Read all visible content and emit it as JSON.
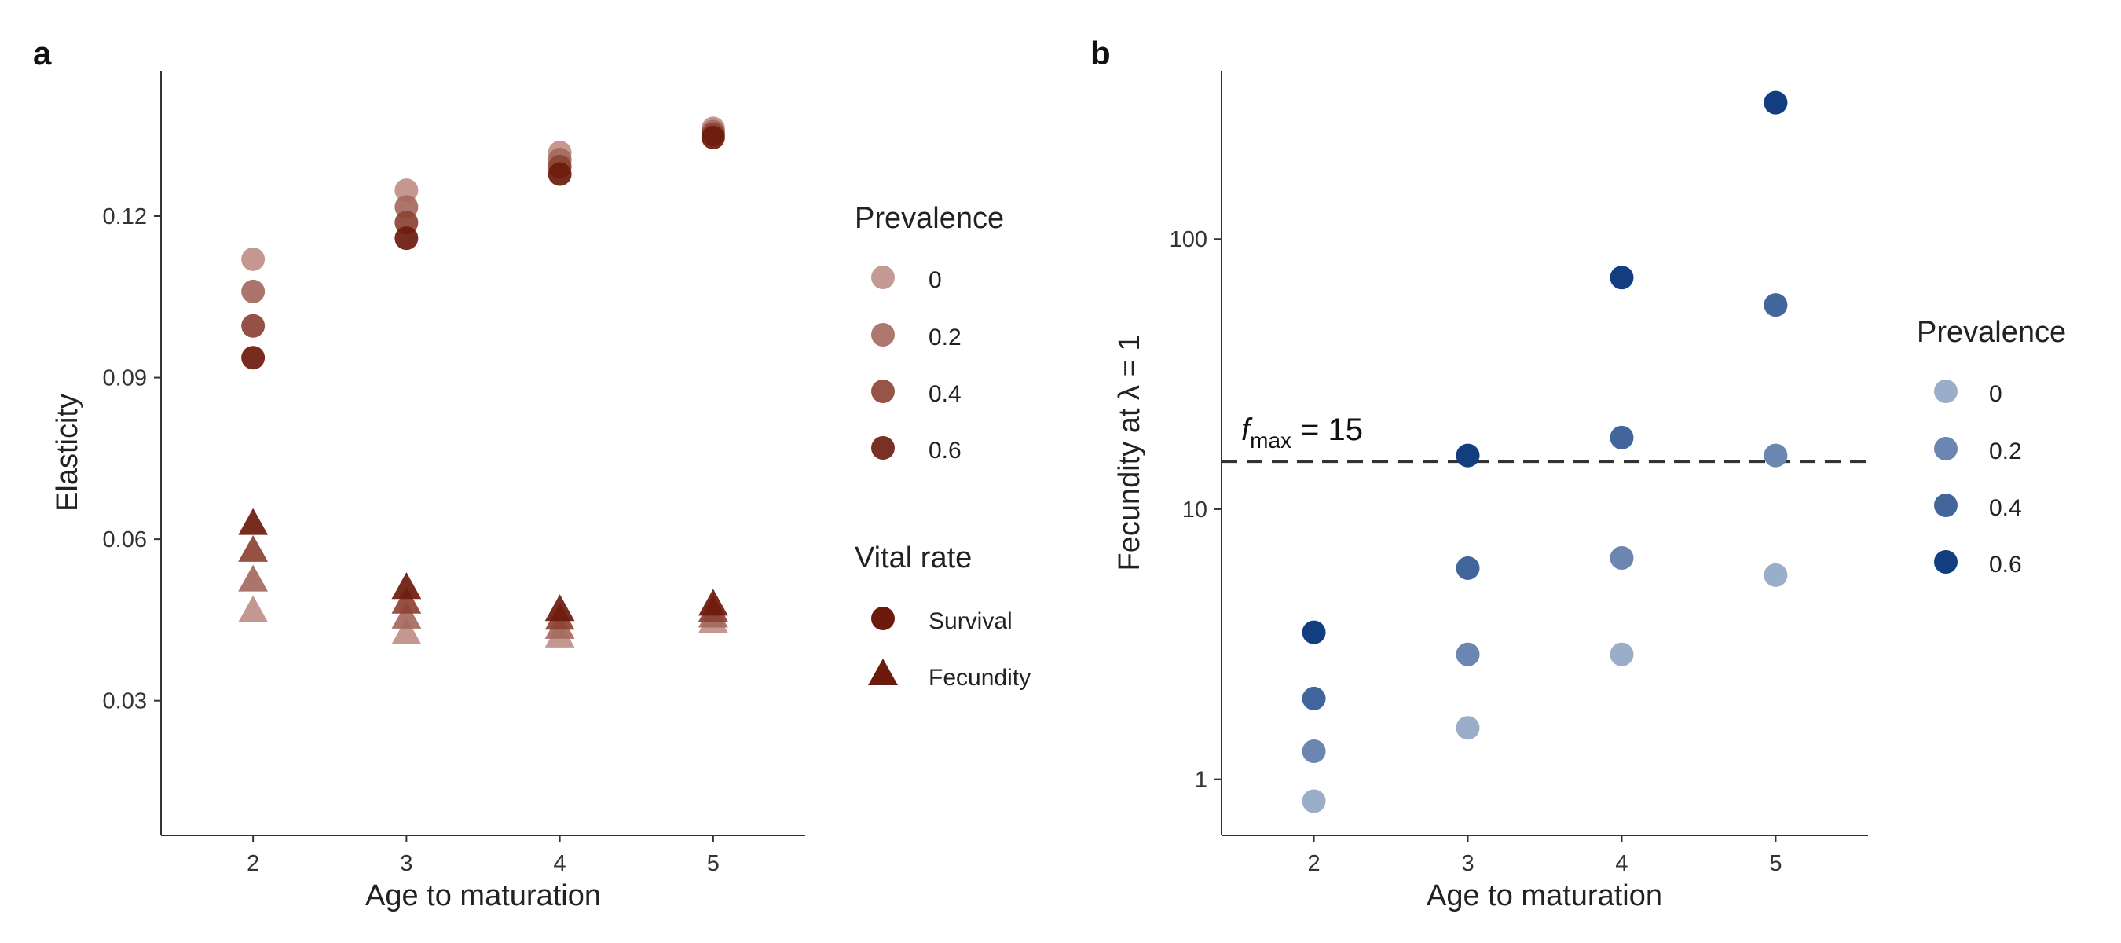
{
  "figure": {
    "panel_a_label": "a",
    "panel_b_label": "b",
    "fmax_label": {
      "symbol": "f",
      "subscript": "max",
      "rest": "= 15"
    }
  },
  "legends": {
    "a_prevalence": {
      "title": "Prevalence",
      "entries": [
        "0",
        "0.2",
        "0.4",
        "0.6"
      ],
      "colors": [
        "#bf8f88",
        "#a5695e",
        "#8c4334",
        "#6b1a0c"
      ]
    },
    "a_vital_rate": {
      "title": "Vital rate",
      "entries": [
        "Survival",
        "Fecundity"
      ],
      "color": "#6b1a0c"
    },
    "b_prevalence": {
      "title": "Prevalence",
      "entries": [
        "0",
        "0.2",
        "0.4",
        "0.6"
      ],
      "colors": [
        "#9aaec9",
        "#6b86b0",
        "#42669c",
        "#123e80"
      ]
    }
  },
  "chart_data": [
    {
      "panel": "a",
      "type": "scatter",
      "xlabel": "Age to maturation",
      "ylabel": "Elasticity",
      "x_ticks": [
        2,
        3,
        4,
        5
      ],
      "y_ticks": [
        0.03,
        0.06,
        0.09,
        0.12
      ],
      "y_tick_labels": [
        "0.03",
        "0.06",
        "0.09",
        "0.12"
      ],
      "xlim": [
        1.4,
        5.6
      ],
      "ylim": [
        0.005,
        0.147
      ],
      "grid": false,
      "prevalence_levels": [
        "0",
        "0.2",
        "0.4",
        "0.6"
      ],
      "series": [
        {
          "name": "Survival",
          "marker": "circle",
          "points": [
            {
              "x": 2,
              "prevalence": "0",
              "y": 0.112
            },
            {
              "x": 2,
              "prevalence": "0.2",
              "y": 0.106
            },
            {
              "x": 2,
              "prevalence": "0.4",
              "y": 0.0996
            },
            {
              "x": 2,
              "prevalence": "0.6",
              "y": 0.0937
            },
            {
              "x": 3,
              "prevalence": "0",
              "y": 0.1248
            },
            {
              "x": 3,
              "prevalence": "0.2",
              "y": 0.1217
            },
            {
              "x": 3,
              "prevalence": "0.4",
              "y": 0.1188
            },
            {
              "x": 3,
              "prevalence": "0.6",
              "y": 0.1159
            },
            {
              "x": 4,
              "prevalence": "0",
              "y": 0.1318
            },
            {
              "x": 4,
              "prevalence": "0.2",
              "y": 0.1305
            },
            {
              "x": 4,
              "prevalence": "0.4",
              "y": 0.1292
            },
            {
              "x": 4,
              "prevalence": "0.6",
              "y": 0.1278
            },
            {
              "x": 5,
              "prevalence": "0",
              "y": 0.1363
            },
            {
              "x": 5,
              "prevalence": "0.2",
              "y": 0.1357
            },
            {
              "x": 5,
              "prevalence": "0.4",
              "y": 0.1352
            },
            {
              "x": 5,
              "prevalence": "0.6",
              "y": 0.1346
            }
          ]
        },
        {
          "name": "Fecundity",
          "marker": "triangle",
          "points": [
            {
              "x": 2,
              "prevalence": "0",
              "y": 0.0465
            },
            {
              "x": 2,
              "prevalence": "0.2",
              "y": 0.0522
            },
            {
              "x": 2,
              "prevalence": "0.4",
              "y": 0.0577
            },
            {
              "x": 2,
              "prevalence": "0.6",
              "y": 0.0627
            },
            {
              "x": 3,
              "prevalence": "0",
              "y": 0.0424
            },
            {
              "x": 3,
              "prevalence": "0.2",
              "y": 0.0453
            },
            {
              "x": 3,
              "prevalence": "0.4",
              "y": 0.0481
            },
            {
              "x": 3,
              "prevalence": "0.6",
              "y": 0.0508
            },
            {
              "x": 4,
              "prevalence": "0",
              "y": 0.0418
            },
            {
              "x": 4,
              "prevalence": "0.2",
              "y": 0.0434
            },
            {
              "x": 4,
              "prevalence": "0.4",
              "y": 0.0451
            },
            {
              "x": 4,
              "prevalence": "0.6",
              "y": 0.0467
            },
            {
              "x": 5,
              "prevalence": "0",
              "y": 0.0445
            },
            {
              "x": 5,
              "prevalence": "0.2",
              "y": 0.0455
            },
            {
              "x": 5,
              "prevalence": "0.4",
              "y": 0.0466
            },
            {
              "x": 5,
              "prevalence": "0.6",
              "y": 0.0477
            }
          ]
        }
      ]
    },
    {
      "panel": "b",
      "type": "scatter",
      "xlabel": "Age to maturation",
      "ylabel": "Fecundity at λ = 1",
      "x_ticks": [
        2,
        3,
        4,
        5
      ],
      "y_ticks": [
        1,
        10,
        100
      ],
      "y_tick_labels": [
        "1",
        "10",
        "100"
      ],
      "y_scale": "log",
      "xlim": [
        1.4,
        5.6
      ],
      "ylim": [
        0.62,
        420
      ],
      "grid": false,
      "reference_line": {
        "y": 15,
        "style": "dashed"
      },
      "prevalence_levels": [
        "0",
        "0.2",
        "0.4",
        "0.6"
      ],
      "points": [
        {
          "x": 2,
          "prevalence": "0",
          "y": 0.83
        },
        {
          "x": 2,
          "prevalence": "0.2",
          "y": 1.27
        },
        {
          "x": 2,
          "prevalence": "0.4",
          "y": 1.99
        },
        {
          "x": 2,
          "prevalence": "0.6",
          "y": 3.5
        },
        {
          "x": 3,
          "prevalence": "0",
          "y": 1.55
        },
        {
          "x": 3,
          "prevalence": "0.2",
          "y": 2.9
        },
        {
          "x": 3,
          "prevalence": "0.4",
          "y": 6.05
        },
        {
          "x": 3,
          "prevalence": "0.6",
          "y": 15.8
        },
        {
          "x": 4,
          "prevalence": "0",
          "y": 2.9
        },
        {
          "x": 4,
          "prevalence": "0.2",
          "y": 6.6
        },
        {
          "x": 4,
          "prevalence": "0.4",
          "y": 18.4
        },
        {
          "x": 4,
          "prevalence": "0.6",
          "y": 72
        },
        {
          "x": 5,
          "prevalence": "0",
          "y": 5.7
        },
        {
          "x": 5,
          "prevalence": "0.2",
          "y": 15.8
        },
        {
          "x": 5,
          "prevalence": "0.4",
          "y": 57
        },
        {
          "x": 5,
          "prevalence": "0.6",
          "y": 320
        }
      ]
    }
  ]
}
